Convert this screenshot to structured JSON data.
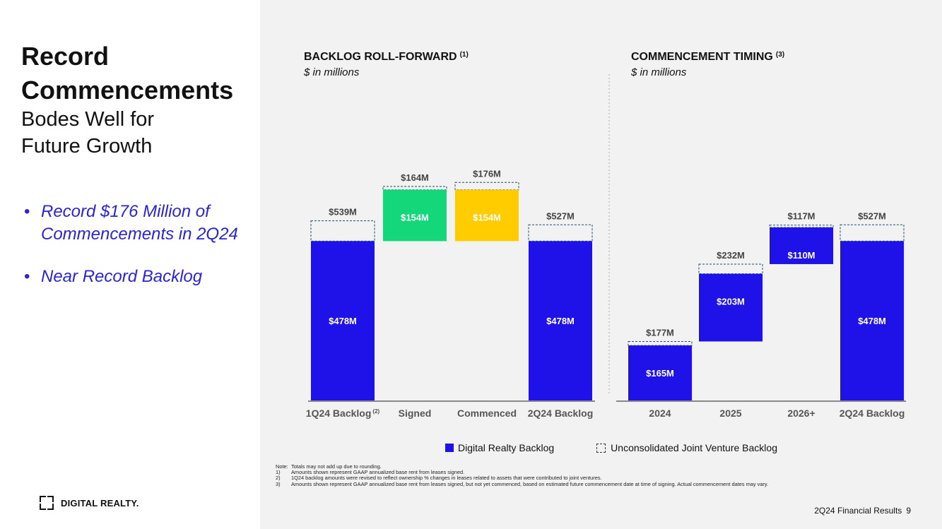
{
  "slide": {
    "title": "Record Commencements",
    "subtitle": "Bodes Well for Future Growth",
    "bullets": [
      "Record $176 Million of Commencements in 2Q24",
      "Near Record Backlog"
    ],
    "logo_text": "DIGITAL REALTY.",
    "footer_text": "2Q24 Financial Results",
    "page_number": "9"
  },
  "colors": {
    "blue": "#1f12e8",
    "green": "#14d77a",
    "yellow": "#ffcc00",
    "panel_bg": "#f2f2f2",
    "bullet_text": "#2a24d8"
  },
  "legend": {
    "solid": "Digital Realty Backlog",
    "dashed": "Unconsolidated Joint Venture Backlog"
  },
  "notes": [
    {
      "num": "Note:",
      "text": "Totals may not add up due to rounding."
    },
    {
      "num": "1)",
      "text": "Amounts shown represent GAAP annualized base rent from leases signed."
    },
    {
      "num": "2)",
      "text": "1Q24 backlog amounts were revised to reflect ownership % changes in leases related to assets that were contributed to joint ventures."
    },
    {
      "num": "3)",
      "text": "Amounts shown represent GAAP annualized base rent from leases signed, but not yet commenced, based on estimated future commencement date at time of signing. Actual commencement dates may vary."
    }
  ],
  "chart_data": [
    {
      "type": "bar",
      "title": "BACKLOG ROLL-FORWARD",
      "title_sup": "(1)",
      "subtitle": "$ in millions",
      "categories": [
        "1Q24 Backlog",
        "Signed",
        "Commenced",
        "2Q24 Backlog"
      ],
      "category_sups": [
        "(2)",
        "",
        "",
        ""
      ],
      "bars": [
        {
          "category": "1Q24 Backlog",
          "base": 0,
          "solid": 478,
          "total": 539,
          "color": "blue",
          "solid_label": "$478M",
          "total_label": "$539M"
        },
        {
          "category": "Signed",
          "base": 478,
          "solid": 154,
          "total": 164,
          "color": "green",
          "solid_label": "$154M",
          "total_label": "$164M"
        },
        {
          "category": "Commenced",
          "base": 478,
          "solid": 154,
          "total": 176,
          "color": "yellow",
          "solid_label": "$154M",
          "total_label": "$176M"
        },
        {
          "category": "2Q24 Backlog",
          "base": 0,
          "solid": 478,
          "total": 527,
          "color": "blue",
          "solid_label": "$478M",
          "total_label": "$527M"
        }
      ]
    },
    {
      "type": "bar",
      "title": "COMMENCEMENT TIMING",
      "title_sup": "(3)",
      "subtitle": "$ in millions",
      "categories": [
        "2024",
        "2025",
        "2026+",
        "2Q24 Backlog"
      ],
      "category_sups": [
        "",
        "",
        "",
        ""
      ],
      "bars": [
        {
          "category": "2024",
          "base": 0,
          "solid": 165,
          "total": 177,
          "color": "blue",
          "solid_label": "$165M",
          "total_label": "$177M"
        },
        {
          "category": "2025",
          "base": 177,
          "solid": 203,
          "total": 232,
          "color": "blue",
          "solid_label": "$203M",
          "total_label": "$232M"
        },
        {
          "category": "2026+",
          "base": 409,
          "solid": 110,
          "total": 117,
          "color": "blue",
          "solid_label": "$110M",
          "total_label": "$117M"
        },
        {
          "category": "2Q24 Backlog",
          "base": 0,
          "solid": 478,
          "total": 527,
          "color": "blue",
          "solid_label": "$478M",
          "total_label": "$527M"
        }
      ]
    }
  ]
}
